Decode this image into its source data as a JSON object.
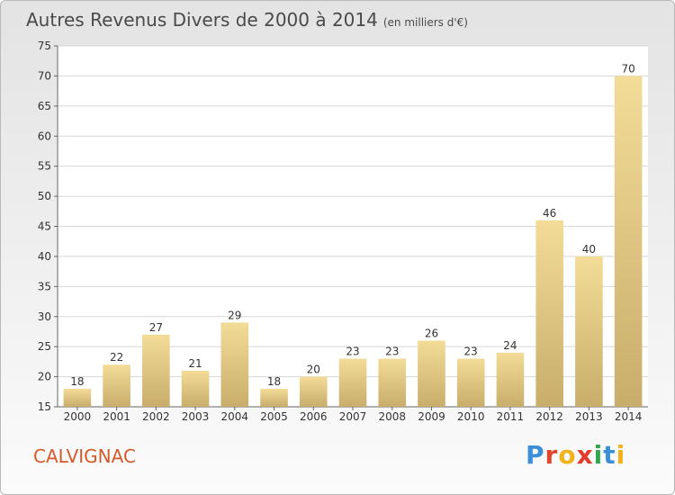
{
  "header": {
    "title": "Autres Revenus Divers de 2000 à 2014",
    "unit": "(en milliers d'€)"
  },
  "footer": {
    "commune": "CALVIGNAC",
    "logo": "Proxiti"
  },
  "colors": {
    "bar_light": "#f3dc98",
    "bar_dark": "#c8ad6b",
    "commune_text": "#d45a2a",
    "logo_letters": [
      "#3b8fd9",
      "#e0452b",
      "#f2b21b",
      "#e23b2b",
      "#2fa84f",
      "#3b8fd9",
      "#f2b21b"
    ]
  },
  "chart_data": {
    "type": "bar",
    "title": "Autres Revenus Divers de 2000 à 2014",
    "xlabel": "",
    "ylabel": "",
    "categories": [
      "2000",
      "2001",
      "2002",
      "2003",
      "2004",
      "2005",
      "2006",
      "2007",
      "2008",
      "2009",
      "2010",
      "2011",
      "2012",
      "2013",
      "2014"
    ],
    "values": [
      18,
      22,
      27,
      21,
      29,
      18,
      20,
      23,
      23,
      26,
      23,
      24,
      46,
      40,
      70
    ],
    "ylim": [
      15,
      75
    ],
    "yticks": [
      15,
      20,
      25,
      30,
      35,
      40,
      45,
      50,
      55,
      60,
      65,
      70,
      75
    ],
    "grid": true,
    "data_labels": true
  }
}
